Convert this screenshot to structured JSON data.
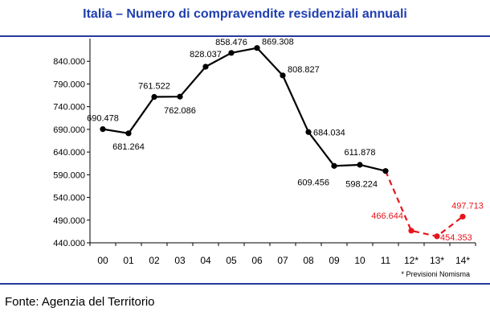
{
  "chart_data": {
    "type": "line",
    "title": "Italia – Numero di compravendite residenziali annuali",
    "categories": [
      "00",
      "01",
      "02",
      "03",
      "04",
      "05",
      "06",
      "07",
      "08",
      "09",
      "10",
      "11",
      "12*",
      "13*",
      "14*"
    ],
    "series": [
      {
        "name": "Compravendite",
        "style": "solid",
        "color": "#000000",
        "x": [
          "00",
          "01",
          "02",
          "03",
          "04",
          "05",
          "06",
          "07",
          "08",
          "09",
          "10",
          "11"
        ],
        "values": [
          690478,
          681264,
          761522,
          762086,
          828037,
          858476,
          869308,
          808827,
          684034,
          609456,
          611878,
          598224
        ],
        "labels": [
          "690.478",
          "681.264",
          "761.522",
          "762.086",
          "828.037",
          "858.476",
          "869.308",
          "808.827",
          "684.034",
          "609.456",
          "611.878",
          "598.224"
        ]
      },
      {
        "name": "Previsioni Nomisma",
        "style": "dashed",
        "color": "#e8141b",
        "x": [
          "11",
          "12*",
          "13*",
          "14*"
        ],
        "values": [
          598224,
          466644,
          454353,
          497713
        ],
        "labels": [
          "",
          "466.644",
          "454.353",
          "497.713"
        ]
      }
    ],
    "y_ticks": [
      440000,
      490000,
      540000,
      590000,
      640000,
      690000,
      740000,
      790000,
      840000
    ],
    "y_tick_labels": [
      "440.000",
      "490.000",
      "540.000",
      "590.000",
      "640.000",
      "690.000",
      "740.000",
      "790.000",
      "840.000"
    ],
    "ylim": [
      440000,
      890000
    ],
    "xlabel": "",
    "ylabel": "",
    "grid": false,
    "footnote": "* Previsioni Nomisma"
  },
  "source": "Fonte: Agenzia del Territorio",
  "colors": {
    "title": "#1f3fb0",
    "rule": "#243a9c",
    "forecast": "#e8141b"
  }
}
